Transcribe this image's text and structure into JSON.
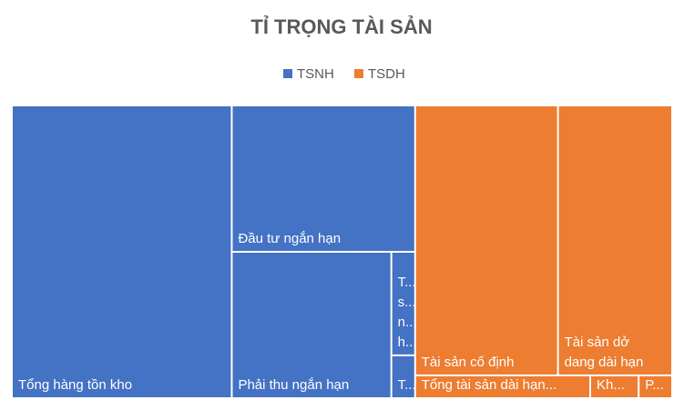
{
  "chart_data": {
    "type": "treemap",
    "title": "TỈ TRỌNG TÀI SẢN",
    "legend_position": "top",
    "series": [
      {
        "name": "TSNH",
        "color": "#4472c4",
        "labels": [
          [
            "Tổng hàng tồn kho"
          ],
          [
            "Đầu tư ngắn hạn"
          ],
          [
            "Phải thu ngắn hạn"
          ],
          [
            "T...",
            "s...",
            "n...",
            "h..."
          ],
          [
            "T..."
          ]
        ],
        "values": [
          758,
          316,
          275,
          29,
          12
        ]
      },
      {
        "name": "TSDH",
        "color": "#ed7d31",
        "labels": [
          [
            "Tài sản cố định"
          ],
          [
            "Tài sản dở",
            "dang dài hạn"
          ],
          [
            "Tổng tài sản dài hạn..."
          ],
          [
            "Kh..."
          ],
          [
            "P..."
          ]
        ],
        "values": [
          454,
          363,
          47,
          13,
          9
        ]
      }
    ]
  }
}
